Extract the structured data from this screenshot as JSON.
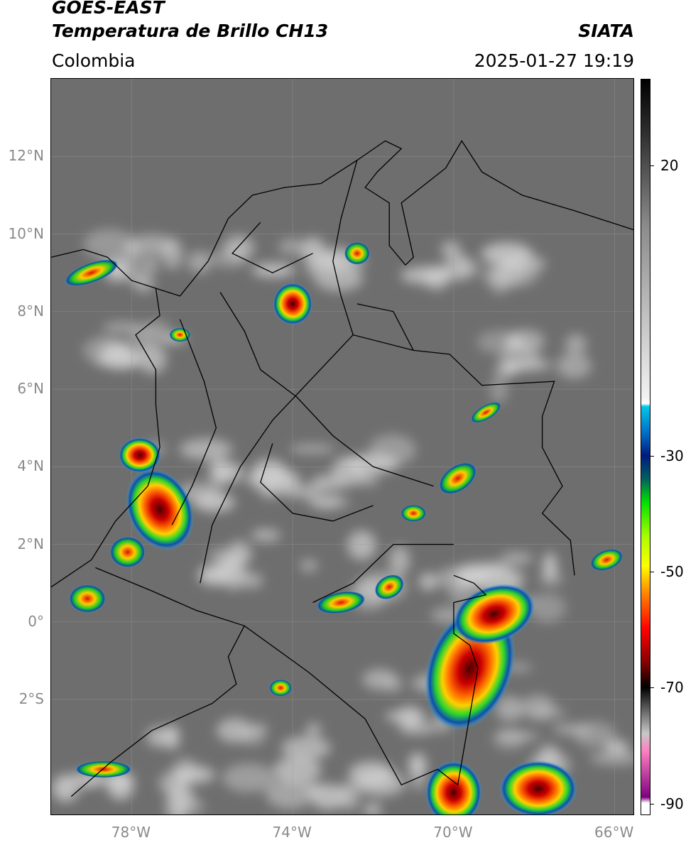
{
  "header": {
    "satellite": "GOES-EAST",
    "product": "Temperatura de Brillo CH13",
    "region": "Colombia",
    "agency": "SIATA",
    "datetime": "2025-01-27 19:19"
  },
  "map": {
    "lon_range": [
      -80,
      -65.5
    ],
    "lat_range": [
      -5,
      14
    ],
    "lat_ticks": [
      {
        "value": 12,
        "label": "12°N"
      },
      {
        "value": 10,
        "label": "10°N"
      },
      {
        "value": 8,
        "label": "8°N"
      },
      {
        "value": 6,
        "label": "6°N"
      },
      {
        "value": 4,
        "label": "4°N"
      },
      {
        "value": 2,
        "label": "2°N"
      },
      {
        "value": 0,
        "label": "0°"
      },
      {
        "value": -2,
        "label": "2°S"
      }
    ],
    "lon_ticks": [
      {
        "value": -78,
        "label": "78°W"
      },
      {
        "value": -74,
        "label": "74°W"
      },
      {
        "value": -70,
        "label": "70°W"
      },
      {
        "value": -66,
        "label": "66°W"
      }
    ],
    "gridlines": true,
    "colors": {
      "background": "#6e6e6e",
      "cloud": "#d8d8d8",
      "border": "#000000"
    }
  },
  "colorbar": {
    "range": [
      -92,
      35
    ],
    "ticks": [
      {
        "value": 20,
        "label": "20"
      },
      {
        "value": -30,
        "label": "-30"
      },
      {
        "value": -50,
        "label": "-50"
      },
      {
        "value": -70,
        "label": "-70"
      },
      {
        "value": -90,
        "label": "-90"
      }
    ]
  }
}
